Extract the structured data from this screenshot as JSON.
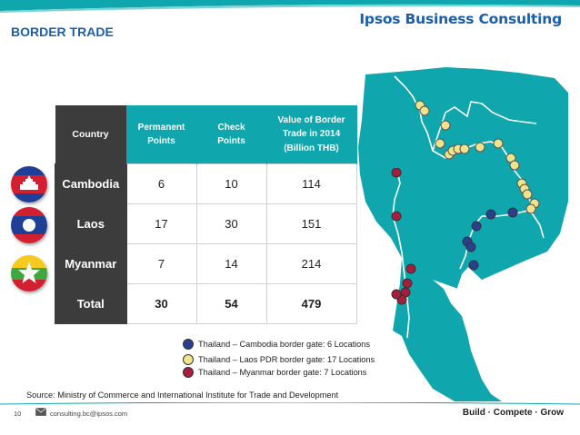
{
  "header": {
    "brand": "Ipsos Business Consulting",
    "title": "BORDER TRADE"
  },
  "table": {
    "headers": [
      "Country",
      "Permanent Points",
      "Check Points",
      "Value of Border Trade in 2014 (Billion THB)"
    ],
    "header_lines": [
      [
        "Country"
      ],
      [
        "Permanent",
        "Points"
      ],
      [
        "Check",
        "Points"
      ],
      [
        "Value of Border",
        "Trade in 2014",
        "(Billion THB)"
      ]
    ],
    "rows": [
      {
        "country": "Cambodia",
        "permanent": "6",
        "check": "10",
        "value": "114"
      },
      {
        "country": "Laos",
        "permanent": "17",
        "check": "30",
        "value": "151"
      },
      {
        "country": "Myanmar",
        "permanent": "7",
        "check": "14",
        "value": "214"
      },
      {
        "country": "Total",
        "permanent": "30",
        "check": "54",
        "value": "479"
      }
    ]
  },
  "flags": [
    "cambodia-flag-icon",
    "laos-flag-icon",
    "myanmar-flag-icon"
  ],
  "legend": [
    {
      "label": "Thailand – Cambodia border gate: 6 Locations",
      "color": "#2b3f8f"
    },
    {
      "label": "Thailand – Laos PDR border gate: 17 Locations",
      "color": "#f1e38c"
    },
    {
      "label": "Thailand – Myanmar border gate: 7 Locations",
      "color": "#a81d3b"
    }
  ],
  "source": "Source: Ministry of Commerce and International Institute for Trade and Development",
  "footer": {
    "page": "10",
    "email": "consulting.bc@ipsos.com",
    "tagline": "Build · Compete · Grow"
  },
  "colors": {
    "brand": "#1a5fa8",
    "teal": "#0fa7ad",
    "dark": "#3c3c3c",
    "cambodia": "#2b3f8f",
    "laos": "#f1e38c",
    "myanmar": "#a81d3b"
  }
}
